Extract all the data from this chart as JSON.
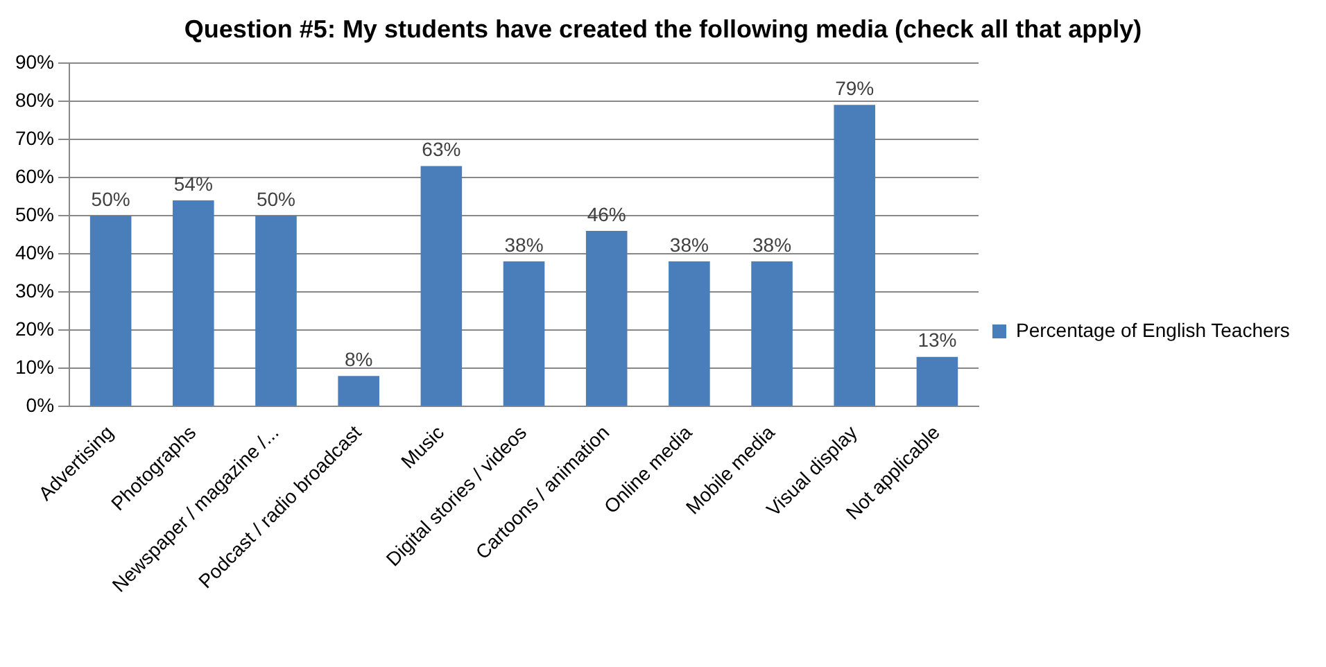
{
  "chart_data": {
    "type": "bar",
    "title": "Question #5: My students have created the following media (check all that apply)",
    "categories": [
      "Advertising",
      "Photographs",
      "Newspaper / magazine /...",
      "Podcast / radio broadcast",
      "Music",
      "Digital stories / videos",
      "Cartoons / animation",
      "Online media",
      "Mobile media",
      "Visual display",
      "Not applicable"
    ],
    "series": [
      {
        "name": "Percentage of English Teachers",
        "color": "#4a7ebb",
        "values": [
          50,
          54,
          50,
          8,
          63,
          38,
          46,
          38,
          38,
          79,
          13
        ],
        "value_labels": [
          "50%",
          "54%",
          "50%",
          "8%",
          "63%",
          "38%",
          "46%",
          "38%",
          "38%",
          "79%",
          "13%"
        ]
      }
    ],
    "ylim": [
      0,
      90
    ],
    "yticks": [
      {
        "value": 0,
        "label": "0%"
      },
      {
        "value": 10,
        "label": "10%"
      },
      {
        "value": 20,
        "label": "20%"
      },
      {
        "value": 30,
        "label": "30%"
      },
      {
        "value": 40,
        "label": "40%"
      },
      {
        "value": 50,
        "label": "50%"
      },
      {
        "value": 60,
        "label": "60%"
      },
      {
        "value": 70,
        "label": "70%"
      },
      {
        "value": 80,
        "label": "80%"
      },
      {
        "value": 90,
        "label": "90%"
      }
    ],
    "grid": "y",
    "legend": "right"
  }
}
